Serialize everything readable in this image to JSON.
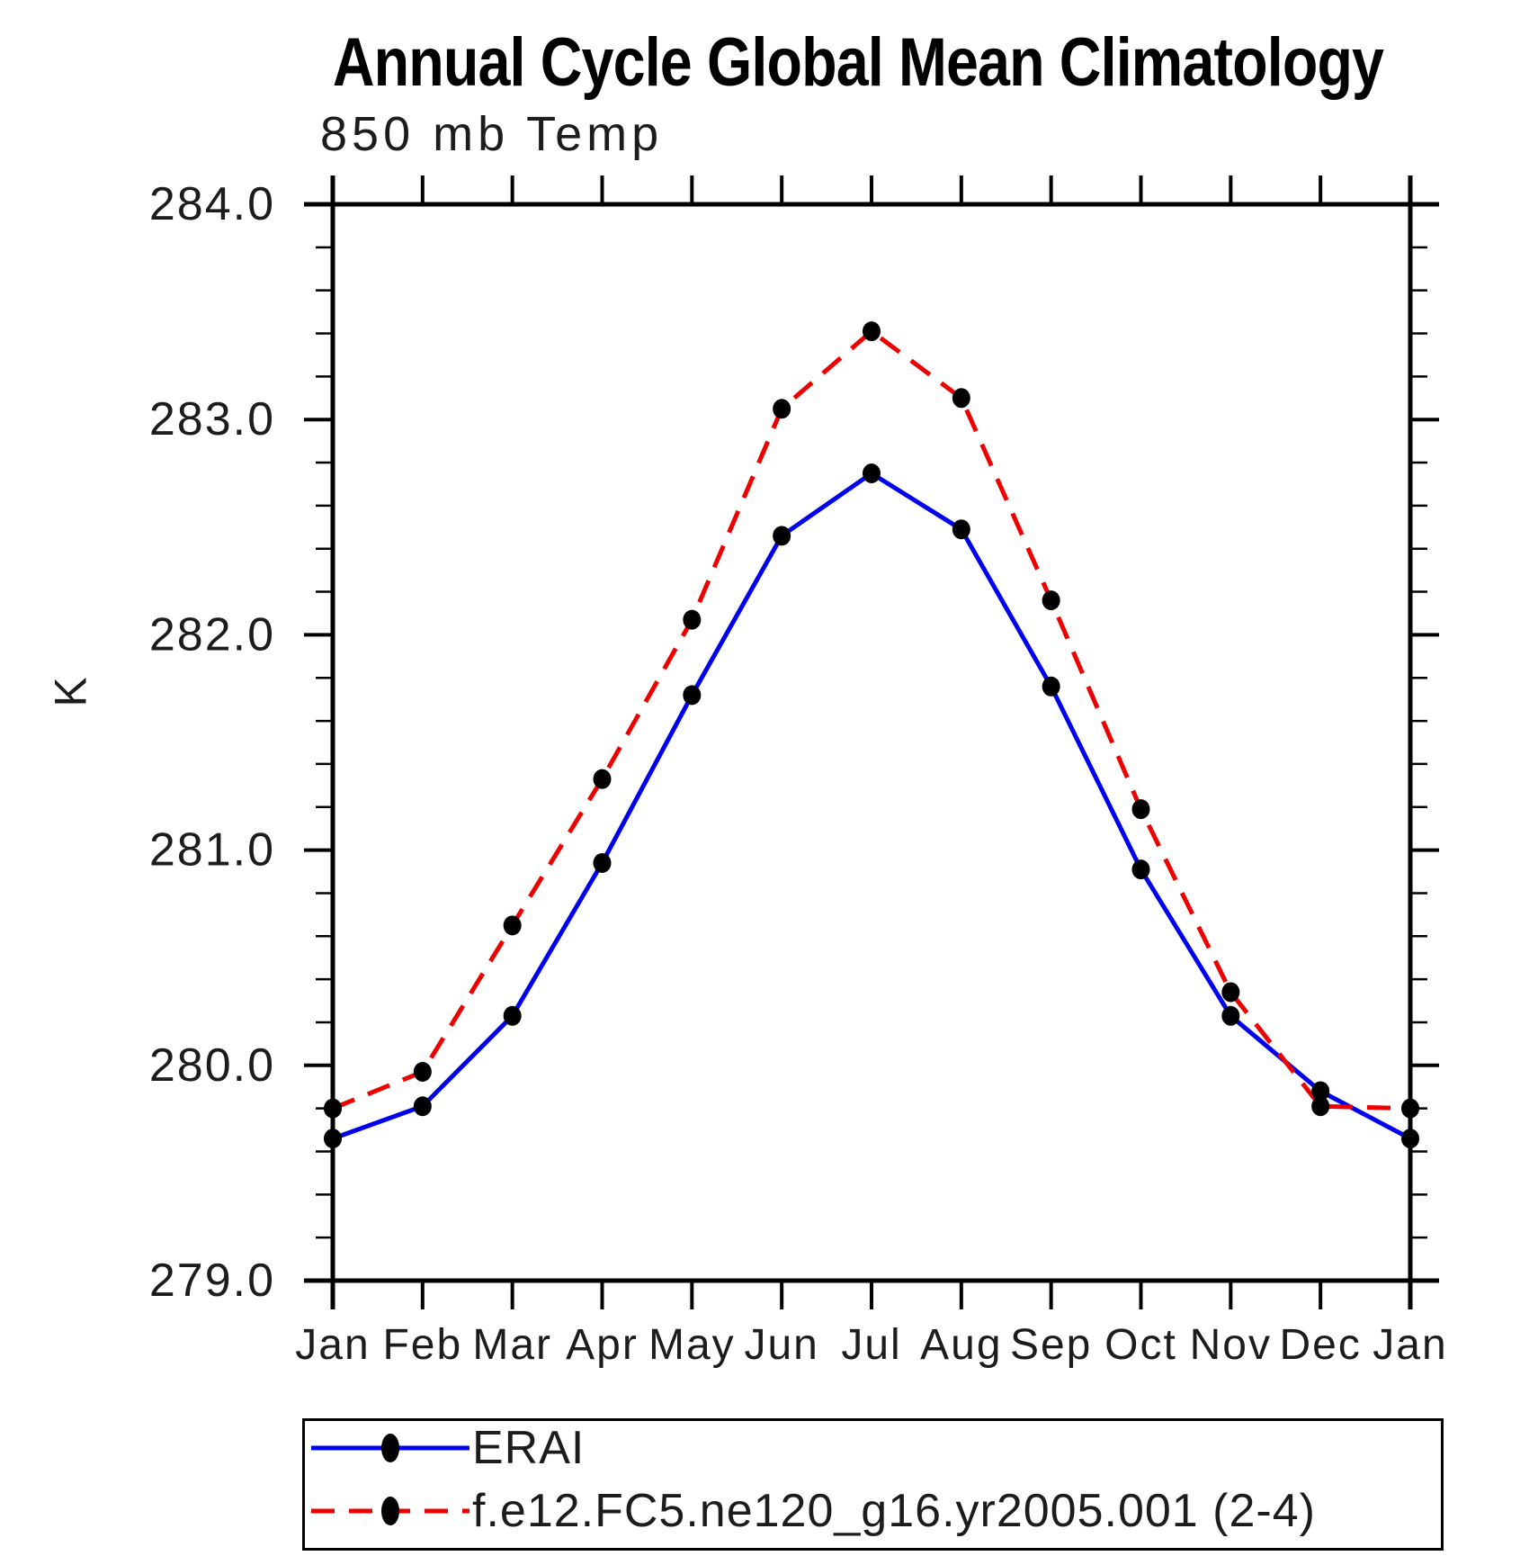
{
  "chart_data": {
    "type": "line",
    "title": "Annual Cycle Global Mean Climatology",
    "subtitle": "850 mb Temp",
    "xlabel": "",
    "ylabel": "K",
    "ylim": [
      279.0,
      284.0
    ],
    "y_major_step": 1.0,
    "y_minor_step": 0.2,
    "y_tick_labels": [
      "284.0",
      "283.0",
      "282.0",
      "281.0",
      "280.0",
      "279.0"
    ],
    "categories": [
      "Jan",
      "Feb",
      "Mar",
      "Apr",
      "May",
      "Jun",
      "Jul",
      "Aug",
      "Sep",
      "Oct",
      "Nov",
      "Dec",
      "Jan"
    ],
    "grid": false,
    "legend_position": "bottom",
    "series": [
      {
        "name": "ERAI",
        "color": "#0000ee",
        "line_style": "solid",
        "marker": "filled-circle",
        "marker_color": "#000000",
        "values": [
          279.66,
          279.81,
          280.23,
          280.94,
          281.72,
          282.46,
          282.75,
          282.49,
          281.76,
          280.91,
          280.23,
          279.88,
          279.66
        ]
      },
      {
        "name": "f.e12.FC5.ne120_g16.yr2005.001 (2-4)",
        "color": "#ee0000",
        "line_style": "dashed",
        "marker": "filled-circle",
        "marker_color": "#000000",
        "values": [
          279.8,
          279.97,
          280.65,
          281.33,
          282.07,
          283.05,
          283.41,
          283.1,
          282.16,
          281.19,
          280.34,
          279.81,
          279.8
        ]
      }
    ]
  }
}
